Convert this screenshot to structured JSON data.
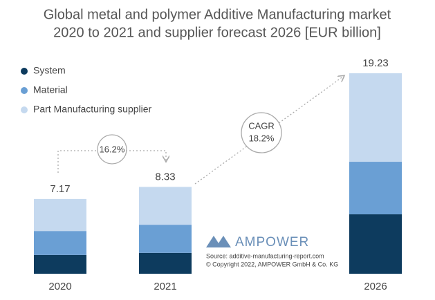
{
  "chart_data": {
    "type": "stacked_bar",
    "title": [
      "Global metal and polymer Additive Manufacturing market",
      "2020 to 2021 and supplier forecast 2026 [EUR billion]"
    ],
    "categories": [
      "2020",
      "2021",
      "2026"
    ],
    "series": [
      {
        "name": "System",
        "color": "#0d3b5e",
        "values": [
          1.8,
          2.0,
          5.7
        ]
      },
      {
        "name": "Material",
        "color": "#6a9fd4",
        "values": [
          2.3,
          2.7,
          5.04
        ]
      },
      {
        "name": "Part Manufacturing supplier",
        "color": "#c5d9ef",
        "values": [
          3.07,
          3.63,
          8.49
        ]
      }
    ],
    "totals": [
      7.17,
      8.33,
      19.23
    ],
    "growth_label": "16.2%",
    "cagr_label": "CAGR",
    "cagr_value": "18.2%",
    "logo": "AMPOWER",
    "source": [
      "Source: additive-manufacturing-report.com",
      "© Copyright 2022, AMPOWER GmbH & Co. KG"
    ]
  }
}
